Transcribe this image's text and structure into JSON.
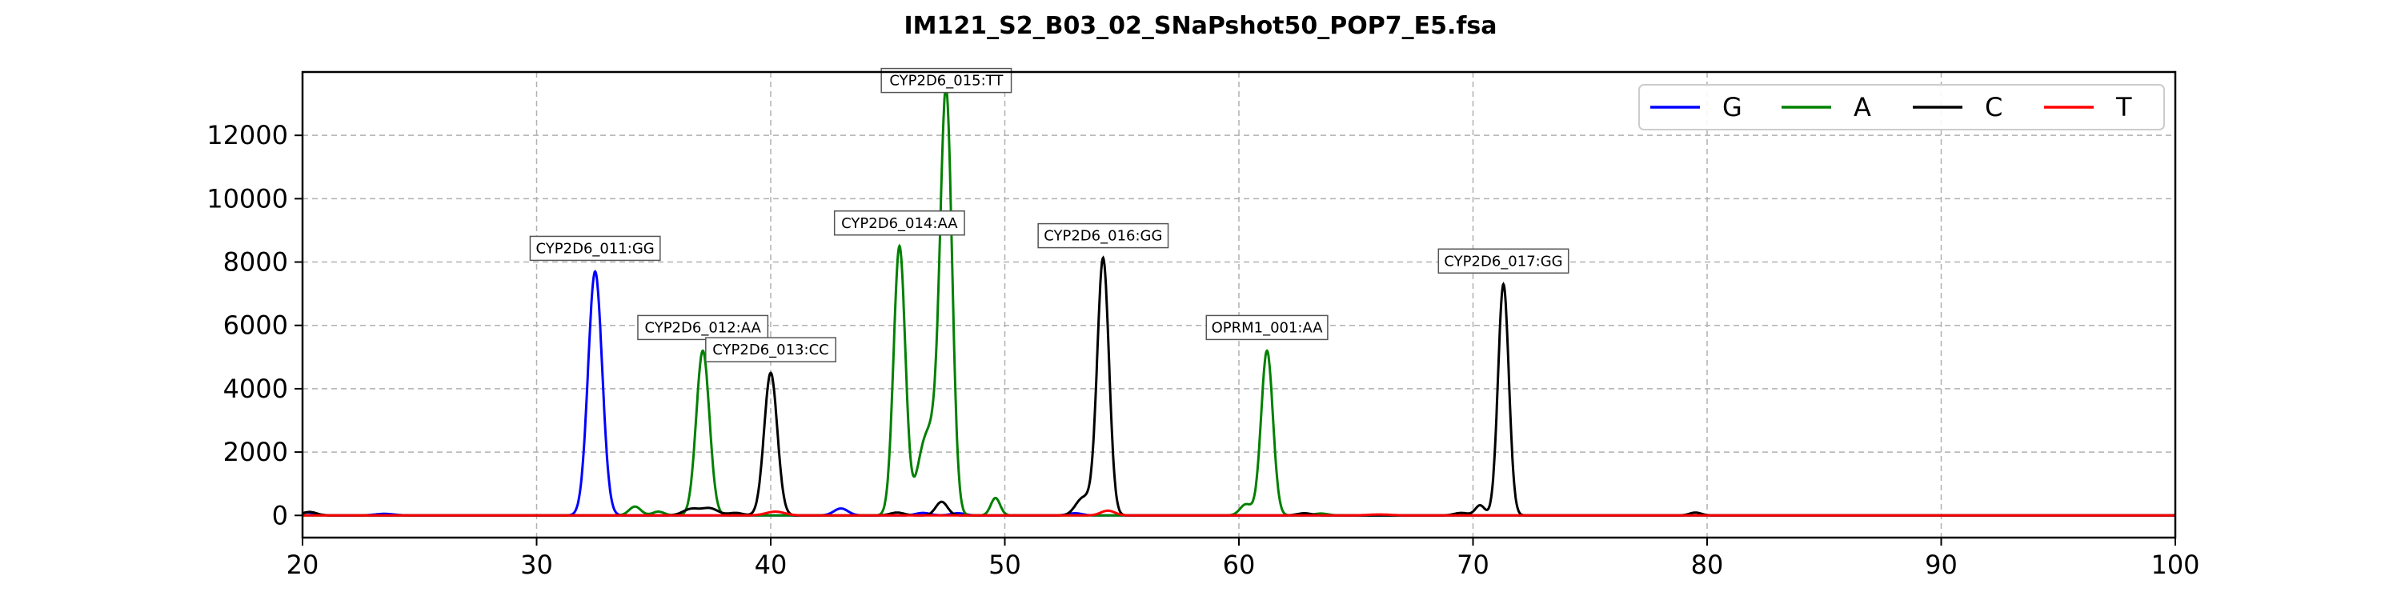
{
  "chart_data": {
    "type": "line",
    "title": "IM121_S2_B03_02_SNaPshot50_POP7_E5.fsa",
    "xlabel": "",
    "ylabel": "",
    "xlim": [
      20,
      100
    ],
    "ylim": [
      -700,
      14000
    ],
    "xticks": [
      20,
      30,
      40,
      50,
      60,
      70,
      80,
      90,
      100
    ],
    "yticks": [
      0,
      2000,
      4000,
      6000,
      8000,
      10000,
      12000
    ],
    "grid": true,
    "legend_position": "top-right",
    "series": [
      {
        "name": "G",
        "color": "#0000ff",
        "peaks": [
          [
            20.2,
            90,
            0.35
          ],
          [
            23.5,
            50,
            0.4
          ],
          [
            32.5,
            7700,
            0.3
          ],
          [
            43.0,
            220,
            0.3
          ],
          [
            46.5,
            80,
            0.3
          ],
          [
            48.0,
            70,
            0.3
          ],
          [
            53.0,
            70,
            0.3
          ]
        ]
      },
      {
        "name": "A",
        "color": "#008000",
        "peaks": [
          [
            34.2,
            280,
            0.25
          ],
          [
            35.2,
            120,
            0.25
          ],
          [
            37.1,
            5200,
            0.28
          ],
          [
            45.5,
            8500,
            0.25
          ],
          [
            46.5,
            1800,
            0.3
          ],
          [
            47.0,
            2000,
            0.3
          ],
          [
            47.5,
            13000,
            0.25
          ],
          [
            49.6,
            550,
            0.2
          ],
          [
            60.3,
            350,
            0.25
          ],
          [
            61.2,
            5200,
            0.25
          ],
          [
            63.5,
            60,
            0.3
          ]
        ]
      },
      {
        "name": "C",
        "color": "#000000",
        "peaks": [
          [
            20.3,
            110,
            0.3
          ],
          [
            36.6,
            200,
            0.35
          ],
          [
            37.4,
            220,
            0.35
          ],
          [
            40.0,
            4500,
            0.28
          ],
          [
            38.5,
            80,
            0.3
          ],
          [
            45.4,
            90,
            0.3
          ],
          [
            47.3,
            430,
            0.25
          ],
          [
            53.3,
            500,
            0.3
          ],
          [
            53.7,
            200,
            0.25
          ],
          [
            54.2,
            8100,
            0.25
          ],
          [
            62.8,
            70,
            0.3
          ],
          [
            69.5,
            80,
            0.3
          ],
          [
            70.3,
            320,
            0.2
          ],
          [
            71.3,
            7300,
            0.23
          ],
          [
            79.5,
            90,
            0.25
          ]
        ]
      },
      {
        "name": "T",
        "color": "#ff0000",
        "peaks": [
          [
            40.2,
            120,
            0.4
          ],
          [
            54.4,
            150,
            0.3
          ],
          [
            66.0,
            30,
            0.5
          ]
        ]
      }
    ],
    "annotations": [
      {
        "label": "CYP2D6_011:GG",
        "x": 32.5,
        "y": 7700
      },
      {
        "label": "CYP2D6_012:AA",
        "x": 37.1,
        "y": 5200
      },
      {
        "label": "CYP2D6_013:CC",
        "x": 40.0,
        "y": 4500
      },
      {
        "label": "CYP2D6_014:AA",
        "x": 45.5,
        "y": 8500
      },
      {
        "label": "CYP2D6_015:TT",
        "x": 47.5,
        "y": 13000
      },
      {
        "label": "CYP2D6_016:GG",
        "x": 54.2,
        "y": 8100
      },
      {
        "label": "OPRM1_001:AA",
        "x": 61.2,
        "y": 5200
      },
      {
        "label": "CYP2D6_017:GG",
        "x": 71.3,
        "y": 7300
      }
    ]
  }
}
